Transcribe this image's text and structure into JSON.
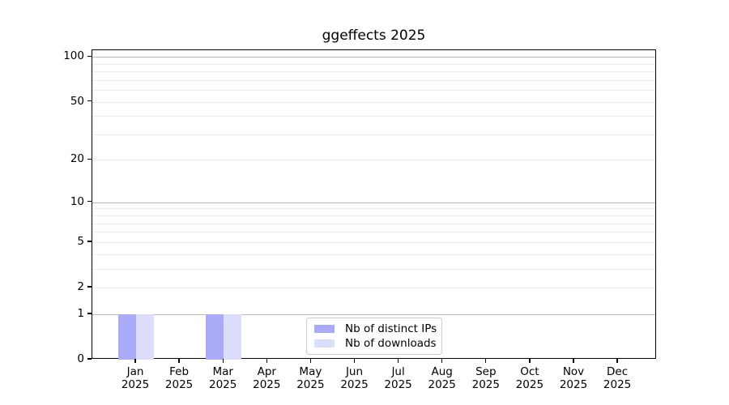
{
  "title": "ggeffects 2025",
  "chart_data": {
    "type": "bar",
    "title": "ggeffects 2025",
    "categories": [
      "Jan",
      "Feb",
      "Mar",
      "Apr",
      "May",
      "Jun",
      "Jul",
      "Aug",
      "Sep",
      "Oct",
      "Nov",
      "Dec"
    ],
    "year": "2025",
    "series": [
      {
        "name": "Nb of distinct IPs",
        "color": "#aaabf8",
        "values": [
          1,
          0,
          1,
          0,
          0,
          0,
          0,
          0,
          0,
          0,
          0,
          0
        ]
      },
      {
        "name": "Nb of downloads",
        "color": "#dcddfb",
        "values": [
          1,
          0,
          1,
          0,
          0,
          0,
          0,
          0,
          0,
          0,
          0,
          0
        ]
      }
    ],
    "xlabel": "",
    "ylabel": "",
    "yscale": "log1p",
    "ylim": [
      0,
      110
    ],
    "ytick_labels": [
      0,
      1,
      2,
      5,
      10,
      20,
      50,
      100
    ],
    "grid_major_values": [
      1,
      10,
      100
    ],
    "grid_minor_values": [
      2,
      3,
      4,
      5,
      6,
      7,
      8,
      9,
      20,
      30,
      40,
      50,
      60,
      70,
      80,
      90
    ],
    "grid_major_color": "#b9b9b9",
    "grid_minor_color": "#ececec",
    "legend_position": "inside-bottom-center"
  }
}
